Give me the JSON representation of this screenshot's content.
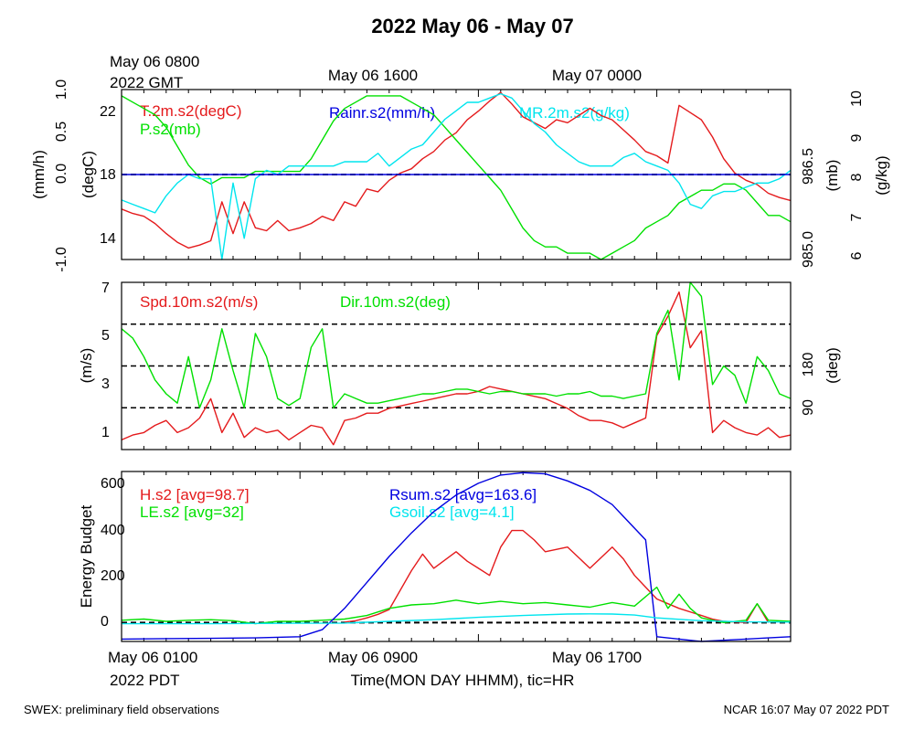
{
  "page": {
    "title": "2022 May 06 - May 07",
    "footer_left": "SWEX: preliminary field observations",
    "footer_right": "NCAR 16:07 May 07 2022 PDT"
  },
  "top_axis": {
    "gmt_line1": "May 06 0800",
    "gmt_line2": "2022 GMT",
    "label_1600": "May 06 1600",
    "label_0000": "May 07 0000"
  },
  "bottom_axis": {
    "label_0100": "May 06 0100",
    "label_0900": "May 06 0900",
    "label_1700": "May 06 1700",
    "tz": "2022 PDT",
    "xlabel": "Time(MON DAY HHMM), tic=HR"
  },
  "colors": {
    "red": "#e41a1c",
    "green": "#00e000",
    "blue": "#0000e0",
    "cyan": "#00e5ee",
    "black": "#000000"
  },
  "chart_data": [
    {
      "type": "line",
      "panel": "top",
      "x_unit": "hours since May 06 0100 PDT",
      "xlim": [
        0,
        30
      ],
      "axes": {
        "left_outer": {
          "label": "(mm/h)",
          "ylim": [
            -1.0,
            1.0
          ],
          "ticks": [
            "1.0",
            "0.5",
            "0.0",
            "-1.0"
          ]
        },
        "left_inner": {
          "label": "(degC)",
          "ylim": [
            12.5,
            24.3
          ],
          "ticks": [
            "22",
            "18",
            "14"
          ]
        },
        "right_inner": {
          "label": "(mb)",
          "ylim": [
            984.9,
            987.6
          ],
          "ticks": [
            "986.5",
            "985.0"
          ]
        },
        "right_outer": {
          "label": "(g/kg)",
          "ylim": [
            6,
            10
          ],
          "ticks": [
            "10",
            "9",
            "8",
            "7",
            "6"
          ]
        }
      },
      "zero_line": 0.0,
      "series": [
        {
          "name": "T.2m.s2(degC)",
          "color": "red",
          "axis": "left_inner",
          "x": [
            0,
            0.5,
            1,
            1.5,
            2,
            2.5,
            3,
            3.5,
            4,
            4.5,
            5,
            5.5,
            6,
            6.5,
            7,
            7.5,
            8,
            8.5,
            9,
            9.5,
            10,
            10.5,
            11,
            11.5,
            12,
            12.5,
            13,
            13.5,
            14,
            14.5,
            15,
            15.5,
            16,
            16.5,
            17,
            17.5,
            18,
            18.5,
            19,
            19.5,
            20,
            20.5,
            21,
            21.5,
            22,
            22.5,
            23,
            23.5,
            24,
            24.5,
            25,
            25.5,
            26,
            26.5,
            27,
            27.5,
            28,
            28.5,
            29,
            29.5,
            30
          ],
          "y": [
            16.0,
            15.7,
            15.5,
            15.0,
            14.3,
            13.7,
            13.3,
            13.5,
            13.8,
            16.5,
            14.3,
            16.5,
            14.7,
            14.5,
            15.2,
            14.5,
            14.7,
            15.0,
            15.5,
            15.2,
            16.5,
            16.2,
            17.4,
            17.2,
            18.0,
            18.5,
            18.8,
            19.5,
            20.0,
            20.8,
            21.3,
            22.2,
            22.8,
            23.5,
            24.1,
            23.3,
            22.4,
            22.0,
            21.6,
            22.2,
            22.0,
            22.5,
            23.0,
            22.5,
            22.2,
            21.5,
            20.8,
            20.0,
            19.7,
            19.2,
            23.2,
            22.7,
            22.2,
            21.0,
            19.5,
            18.5,
            18.0,
            17.7,
            17.1,
            16.8,
            16.6
          ]
        },
        {
          "name": "P.s2(mb)",
          "color": "green",
          "axis": "right_inner",
          "x": [
            0,
            0.5,
            1,
            1.5,
            2,
            2.5,
            3,
            3.5,
            4,
            4.5,
            5,
            5.5,
            6,
            6.5,
            7,
            7.5,
            8,
            8.5,
            9,
            9.5,
            10,
            10.5,
            11,
            11.5,
            12,
            12.5,
            13,
            13.5,
            14,
            14.5,
            15,
            15.5,
            16,
            16.5,
            17,
            17.5,
            18,
            18.5,
            19,
            19.5,
            20,
            20.5,
            21,
            21.5,
            22,
            22.5,
            23,
            23.5,
            24,
            24.5,
            25,
            25.5,
            26,
            26.5,
            27,
            27.5,
            28,
            28.5,
            29,
            29.5,
            30
          ],
          "y": [
            987.5,
            987.4,
            987.3,
            987.2,
            987.0,
            986.7,
            986.4,
            986.2,
            986.1,
            986.2,
            986.2,
            986.2,
            986.3,
            986.3,
            986.3,
            986.3,
            986.3,
            986.5,
            986.8,
            987.1,
            987.3,
            987.4,
            987.5,
            987.5,
            987.5,
            987.5,
            987.4,
            987.3,
            987.2,
            987.0,
            986.8,
            986.6,
            986.4,
            986.2,
            986.0,
            985.7,
            985.4,
            985.2,
            985.1,
            985.1,
            985.0,
            985.0,
            985.0,
            984.9,
            985.0,
            985.1,
            985.2,
            985.4,
            985.5,
            985.6,
            985.8,
            985.9,
            986.0,
            986.0,
            986.1,
            986.1,
            986.0,
            985.8,
            985.6,
            985.6,
            985.5
          ]
        },
        {
          "name": "MR.2m.s2(g/kg)",
          "color": "cyan",
          "axis": "right_outer",
          "x": [
            0,
            0.5,
            1,
            1.5,
            2,
            2.5,
            3,
            3.5,
            4,
            4.5,
            5,
            5.5,
            6,
            6.5,
            7,
            7.5,
            8,
            8.5,
            9,
            9.5,
            10,
            10.5,
            11,
            11.5,
            12,
            12.5,
            13,
            13.5,
            14,
            14.5,
            15,
            15.5,
            16,
            16.5,
            17,
            17.5,
            18,
            18.5,
            19,
            19.5,
            20,
            20.5,
            21,
            21.5,
            22,
            22.5,
            23,
            23.5,
            24,
            24.5,
            25,
            25.5,
            26,
            26.5,
            27,
            27.5,
            28,
            28.5,
            29,
            29.5,
            30
          ],
          "y": [
            7.4,
            7.3,
            7.2,
            7.1,
            7.5,
            7.8,
            8.0,
            7.9,
            7.9,
            6.0,
            7.8,
            6.5,
            7.9,
            8.1,
            8.0,
            8.2,
            8.2,
            8.2,
            8.2,
            8.2,
            8.3,
            8.3,
            8.3,
            8.5,
            8.2,
            8.4,
            8.6,
            8.7,
            9.0,
            9.3,
            9.5,
            9.7,
            9.7,
            9.8,
            9.9,
            9.8,
            9.5,
            9.2,
            9.0,
            8.7,
            8.5,
            8.3,
            8.2,
            8.2,
            8.2,
            8.4,
            8.5,
            8.3,
            8.2,
            8.1,
            7.8,
            7.3,
            7.2,
            7.5,
            7.6,
            7.6,
            7.7,
            7.8,
            7.8,
            7.9,
            8.1
          ]
        },
        {
          "name": "Rainr.s2(mm/h)",
          "color": "blue",
          "axis": "left_outer",
          "x": [
            0,
            30
          ],
          "y": [
            0.0,
            0.0
          ]
        }
      ]
    },
    {
      "type": "line",
      "panel": "middle",
      "x_unit": "hours since May 06 0100 PDT",
      "xlim": [
        0,
        30
      ],
      "axes": {
        "left": {
          "label": "(m/s)",
          "ylim": [
            0.3,
            7.2
          ],
          "ticks": [
            "7",
            "5",
            "3",
            "1"
          ]
        },
        "right": {
          "label": "(deg)",
          "ylim": [
            0,
            360
          ],
          "ticks": [
            "180",
            "90"
          ]
        }
      },
      "hlines_deg": [
        90,
        180,
        270
      ],
      "series": [
        {
          "name": "Spd.10m.s2(m/s)",
          "color": "red",
          "axis": "left",
          "x": [
            0,
            0.5,
            1,
            1.5,
            2,
            2.5,
            3,
            3.5,
            4,
            4.5,
            5,
            5.5,
            6,
            6.5,
            7,
            7.5,
            8,
            8.5,
            9,
            9.5,
            10,
            10.5,
            11,
            11.5,
            12,
            12.5,
            13,
            13.5,
            14,
            14.5,
            15,
            15.5,
            16,
            16.5,
            17,
            17.5,
            18,
            18.5,
            19,
            19.5,
            20,
            20.5,
            21,
            21.5,
            22,
            22.5,
            23,
            23.5,
            24,
            24.5,
            25,
            25.5,
            26,
            26.5,
            27,
            27.5,
            28,
            28.5,
            29,
            29.5,
            30
          ],
          "y": [
            0.7,
            0.9,
            1.0,
            1.3,
            1.5,
            1.0,
            1.2,
            1.6,
            2.4,
            1.0,
            1.8,
            0.8,
            1.2,
            1.0,
            1.1,
            0.7,
            1.0,
            1.3,
            1.2,
            0.5,
            1.5,
            1.6,
            1.8,
            1.8,
            2.0,
            2.1,
            2.2,
            2.3,
            2.4,
            2.5,
            2.6,
            2.6,
            2.7,
            2.9,
            2.8,
            2.7,
            2.6,
            2.5,
            2.4,
            2.2,
            2.0,
            1.7,
            1.5,
            1.5,
            1.4,
            1.2,
            1.4,
            1.6,
            5.0,
            5.8,
            6.8,
            4.5,
            5.2,
            1.0,
            1.5,
            1.2,
            1.0,
            0.9,
            1.2,
            0.8,
            0.9
          ]
        },
        {
          "name": "Dir.10m.s2(deg)",
          "color": "green",
          "axis": "right",
          "x": [
            0,
            0.5,
            1,
            1.5,
            2,
            2.5,
            3,
            3.5,
            4,
            4.5,
            5,
            5.5,
            6,
            6.5,
            7,
            7.5,
            8,
            8.5,
            9,
            9.5,
            10,
            10.5,
            11,
            11.5,
            12,
            12.5,
            13,
            13.5,
            14,
            14.5,
            15,
            15.5,
            16,
            16.5,
            17,
            17.5,
            18,
            18.5,
            19,
            19.5,
            20,
            20.5,
            21,
            21.5,
            22,
            22.5,
            23,
            23.5,
            24,
            24.5,
            25,
            25.5,
            26,
            26.5,
            27,
            27.5,
            28,
            28.5,
            29,
            29.5,
            30
          ],
          "y": [
            260,
            240,
            200,
            150,
            120,
            100,
            200,
            90,
            150,
            260,
            170,
            90,
            250,
            200,
            110,
            95,
            110,
            220,
            260,
            90,
            120,
            110,
            100,
            100,
            105,
            110,
            115,
            120,
            120,
            125,
            130,
            130,
            125,
            120,
            125,
            125,
            120,
            120,
            120,
            115,
            120,
            120,
            125,
            115,
            115,
            110,
            115,
            120,
            250,
            300,
            150,
            360,
            330,
            140,
            180,
            160,
            100,
            200,
            170,
            120,
            110
          ]
        }
      ]
    },
    {
      "type": "line",
      "panel": "bottom",
      "x_unit": "hours since May 06 0100 PDT",
      "xlim": [
        0,
        30
      ],
      "axes": {
        "left": {
          "label": "Energy Budget",
          "ylim": [
            -80,
            640
          ],
          "ticks": [
            "600",
            "400",
            "200",
            "0"
          ]
        }
      },
      "zero_line": 0,
      "series": [
        {
          "name": "H.s2 [avg=98.7]",
          "color": "red",
          "x": [
            10,
            10.5,
            11,
            11.5,
            12,
            13,
            13.5,
            14,
            15,
            15.5,
            16,
            16.5,
            17,
            17.5,
            18,
            18.5,
            19,
            20,
            21,
            22,
            22.5,
            23,
            23.5,
            24,
            24.5,
            25,
            26,
            26.5,
            27,
            28,
            28.5,
            29
          ],
          "y": [
            2,
            8,
            20,
            35,
            55,
            220,
            290,
            230,
            300,
            260,
            230,
            200,
            320,
            390,
            390,
            350,
            300,
            320,
            230,
            320,
            270,
            200,
            150,
            100,
            80,
            60,
            30,
            15,
            5,
            0,
            80,
            0
          ]
        },
        {
          "name": "LE.s2 [avg=32]",
          "color": "green",
          "x": [
            0,
            1,
            2,
            3,
            4,
            5,
            6,
            7,
            8,
            9,
            10,
            11,
            12,
            13,
            14,
            15,
            16,
            17,
            18,
            19,
            20,
            21,
            22,
            23,
            24,
            24.5,
            25,
            25.5,
            26,
            26.5,
            27,
            28,
            28.5,
            29,
            30
          ],
          "y": [
            10,
            15,
            5,
            10,
            12,
            8,
            -5,
            5,
            5,
            10,
            15,
            30,
            60,
            75,
            80,
            95,
            80,
            90,
            80,
            85,
            75,
            65,
            85,
            70,
            150,
            60,
            120,
            60,
            20,
            10,
            0,
            10,
            80,
            10,
            5
          ]
        },
        {
          "name": "Rsum.s2 [avg=163.6]",
          "color": "blue",
          "x": [
            0,
            2,
            4,
            6,
            8,
            9,
            10,
            11,
            12,
            13,
            14,
            15,
            16,
            17,
            18,
            19,
            20,
            21,
            22,
            22.5,
            23,
            23.5,
            24,
            25,
            26,
            27,
            28,
            29,
            30
          ],
          "y": [
            -70,
            -68,
            -67,
            -65,
            -60,
            -30,
            60,
            170,
            280,
            380,
            470,
            540,
            590,
            625,
            635,
            630,
            600,
            560,
            500,
            450,
            400,
            350,
            -60,
            -70,
            -80,
            -75,
            -70,
            -65,
            -60
          ]
        },
        {
          "name": "Gsoil.s2 [avg=4.1]",
          "color": "cyan",
          "x": [
            0,
            4,
            8,
            10,
            12,
            14,
            16,
            18,
            20,
            21,
            22,
            23,
            24,
            26,
            28,
            30
          ],
          "y": [
            -5,
            -5,
            -3,
            -2,
            5,
            12,
            22,
            30,
            36,
            37,
            36,
            32,
            20,
            8,
            3,
            2
          ]
        }
      ]
    }
  ]
}
